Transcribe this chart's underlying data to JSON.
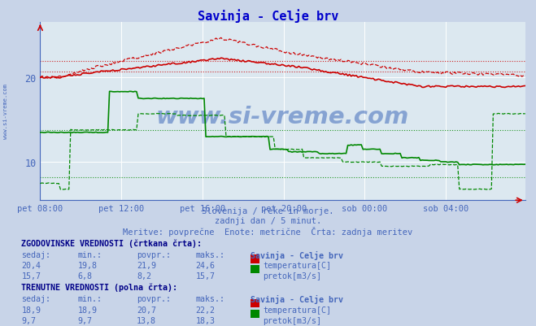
{
  "title": "Savinja - Celje brv",
  "bg_color": "#c8d4e8",
  "plot_bg_color": "#dce8f0",
  "grid_color": "#ffffff",
  "text_color": "#4466bb",
  "title_color": "#0000cc",
  "bold_color": "#000088",
  "subtitle_lines": [
    "Slovenija / reke in morje.",
    "zadnji dan / 5 minut.",
    "Meritve: povprečne  Enote: metrične  Črta: zadnja meritev"
  ],
  "x_tick_labels": [
    "pet 08:00",
    "pet 12:00",
    "pet 16:00",
    "pet 20:00",
    "sob 00:00",
    "sob 04:00"
  ],
  "x_tick_positions": [
    0,
    48,
    96,
    144,
    192,
    240
  ],
  "n": 288,
  "y_lim": [
    5.5,
    26.5
  ],
  "y_ticks": [
    10,
    20
  ],
  "temp_color": "#cc0000",
  "flow_color": "#008800",
  "watermark": "www.si-vreme.com",
  "watermark_color": "#1144aa",
  "left_label": "www.si-vreme.com",
  "avg_temp_hist": 21.9,
  "avg_temp_curr": 20.7,
  "avg_flow_hist": 8.2,
  "avg_flow_curr": 13.8,
  "hist_sedaj_temp": "20,4",
  "hist_min_temp": "19,8",
  "hist_avg_temp": "21,9",
  "hist_max_temp": "24,6",
  "hist_sedaj_flow": "15,7",
  "hist_min_flow": "6,8",
  "hist_avg_flow": "8,2",
  "hist_max_flow": "15,7",
  "curr_sedaj_temp": "18,9",
  "curr_min_temp": "18,9",
  "curr_avg_temp": "20,7",
  "curr_max_temp": "22,2",
  "curr_sedaj_flow": "9,7",
  "curr_min_flow": "9,7",
  "curr_avg_flow": "13,8",
  "curr_max_flow": "18,3",
  "station": "Savinja - Celje brv"
}
